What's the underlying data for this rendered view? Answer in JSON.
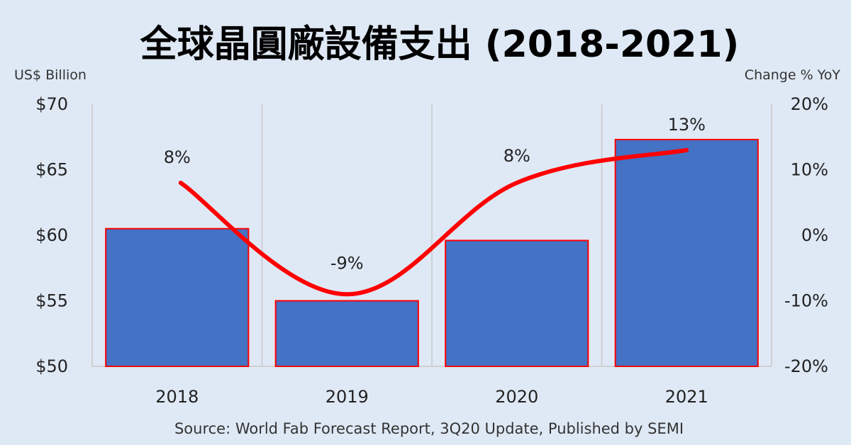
{
  "chart_data": {
    "type": "bar",
    "title": "全球晶圓廠設備支出 (2018-2021)",
    "categories": [
      "2018",
      "2019",
      "2020",
      "2021"
    ],
    "series": [
      {
        "type": "bar",
        "axis": "left",
        "values": [
          60.5,
          55.0,
          59.6,
          67.3
        ]
      },
      {
        "type": "line",
        "axis": "right",
        "values": [
          8,
          -9,
          8,
          13
        ],
        "data_labels": [
          "8%",
          "-9%",
          "8%",
          "13%"
        ]
      }
    ],
    "ylabel_left": "US$ Billion",
    "ylabel_right": "Change % YoY",
    "ylim_left": [
      50,
      70
    ],
    "ylim_right": [
      -20,
      20
    ],
    "yticks_left": [
      "$50",
      "$55",
      "$60",
      "$65",
      "$70"
    ],
    "yticks_right": [
      "-20%",
      "-10%",
      "0%",
      "10%",
      "20%"
    ],
    "grid": "vertical",
    "colors": {
      "bar_fill": "#4472c4",
      "bar_edge": "#ff0000",
      "line": "#ff0000",
      "background": "#dfe9f5",
      "grid": "#c8c8c8"
    },
    "source": "Source: World Fab Forecast Report, 3Q20 Update, Published by SEMI"
  }
}
